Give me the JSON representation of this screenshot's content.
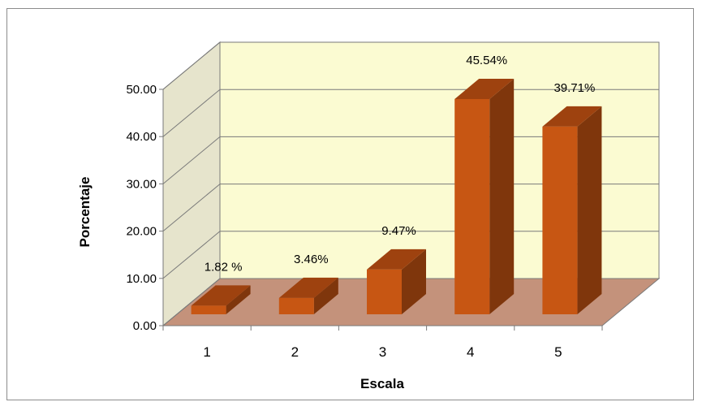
{
  "chart_data": {
    "type": "bar",
    "categories": [
      "1",
      "2",
      "3",
      "4",
      "5"
    ],
    "values": [
      1.82,
      3.46,
      9.47,
      45.54,
      39.71
    ],
    "data_labels": [
      "1.82 %",
      "3.46%",
      "9.47%",
      "45.54%",
      "39.71%"
    ],
    "ytick_labels": [
      "0.00",
      "10.00",
      "20.00",
      "30.00",
      "40.00",
      "50.00"
    ],
    "ylim": [
      0,
      50
    ],
    "xlabel": "Escala",
    "ylabel": "Porcentaje",
    "grid": true,
    "legend": "none",
    "style": "3d-column",
    "colors": {
      "bar_front": "#c75613",
      "bar_side": "#7f360c",
      "bar_top": "#9e420f",
      "back_wall": "#fbfbd2",
      "side_wall": "#e6e4cc",
      "floor": "#c4927b",
      "gridline": "#7a7a7a",
      "frame": "#8c8c8c"
    }
  }
}
